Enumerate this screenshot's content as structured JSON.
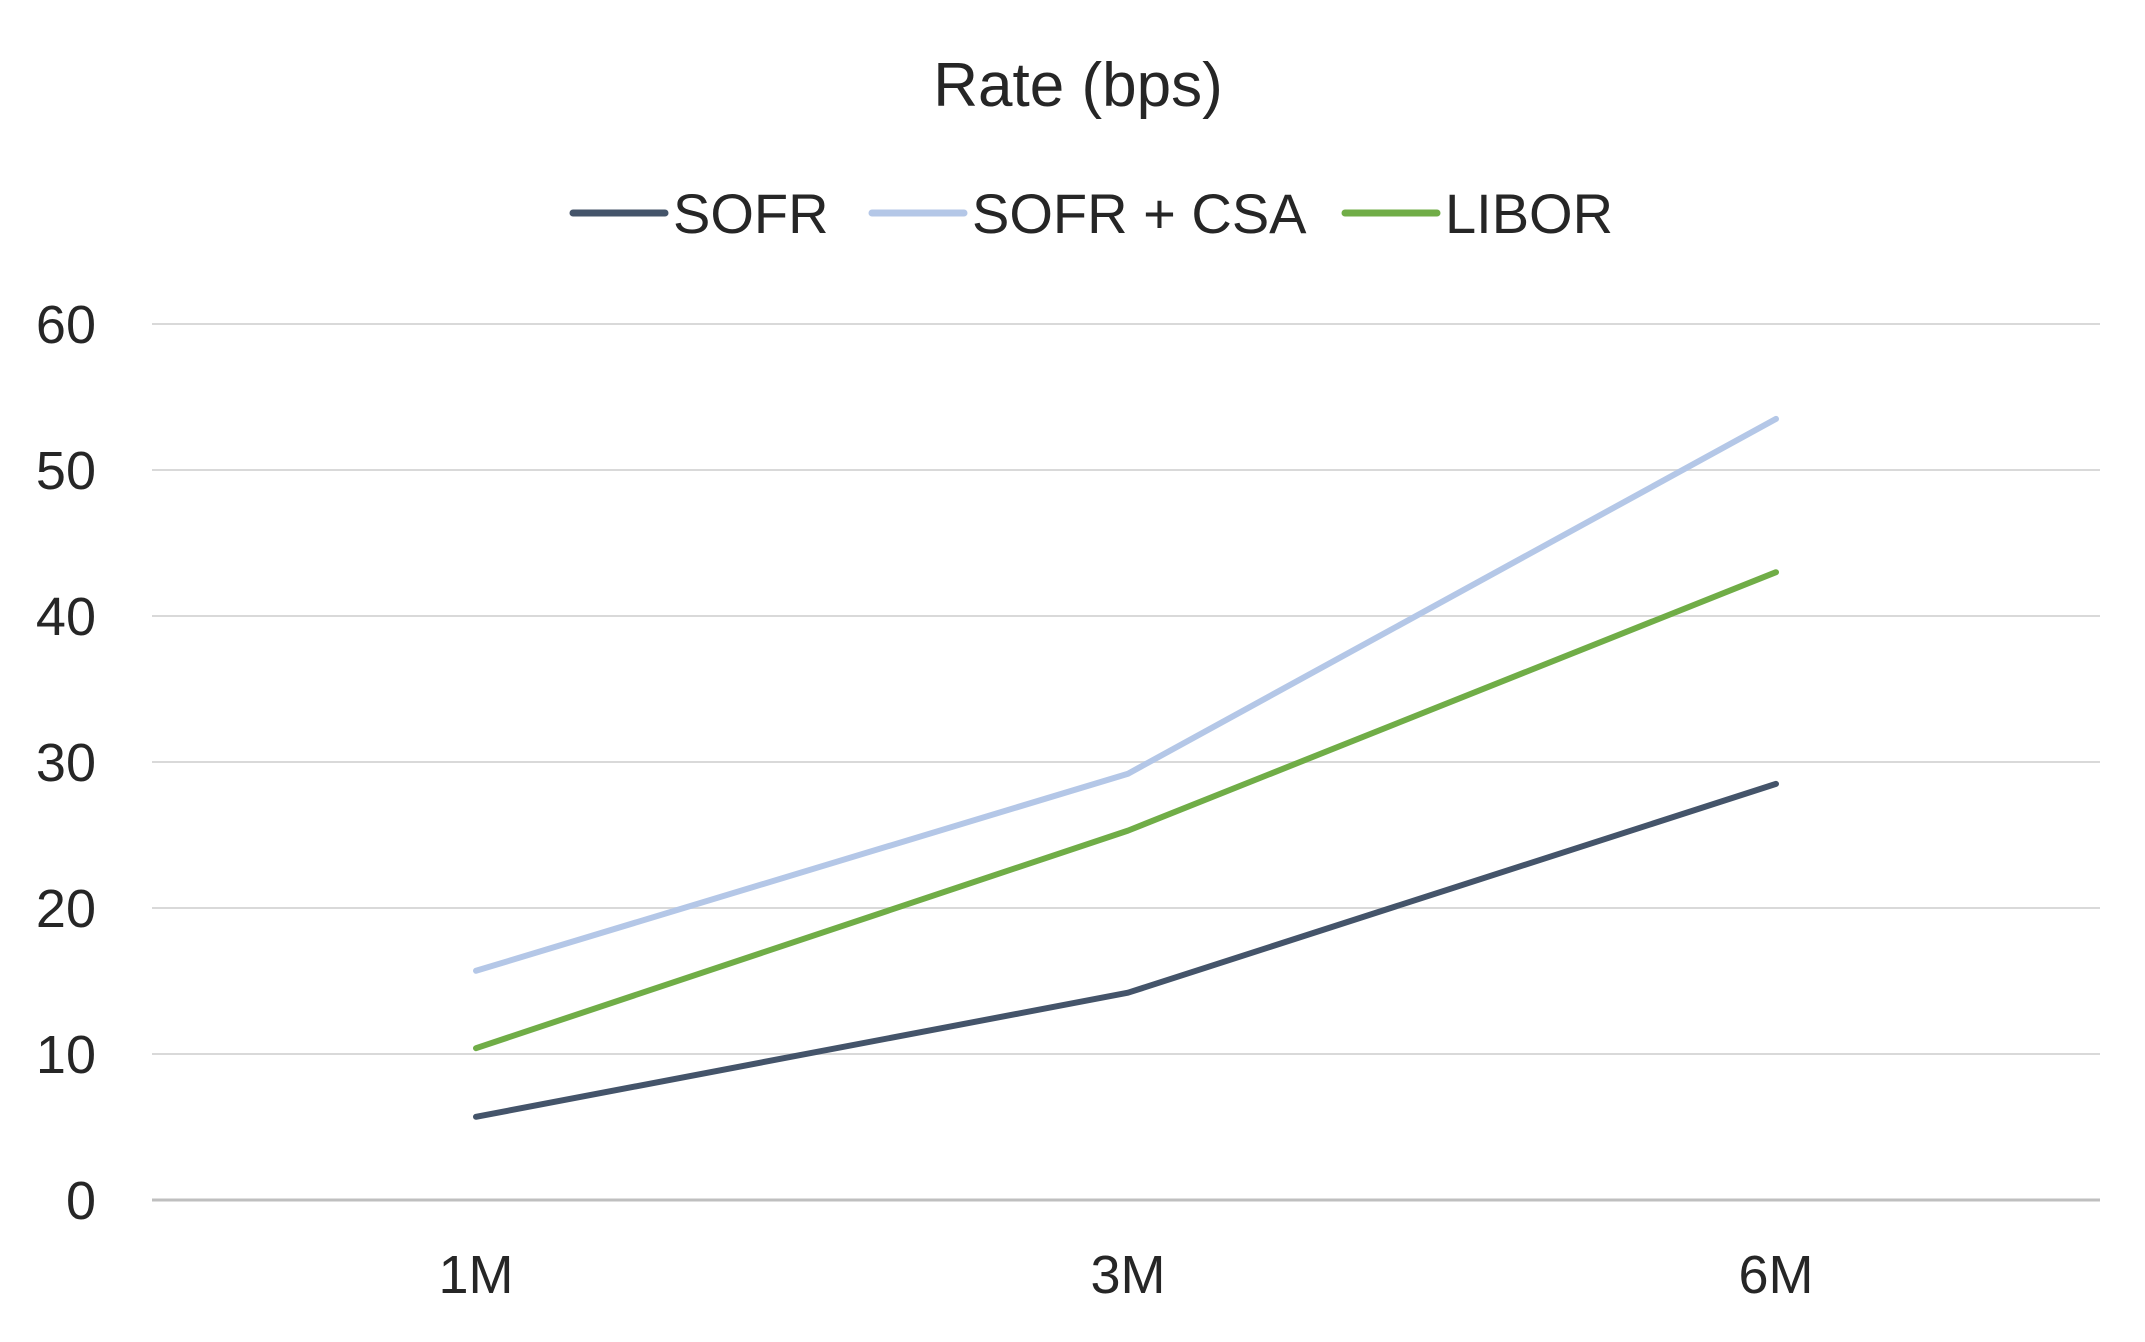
{
  "chart_data": {
    "type": "line",
    "title": "Rate (bps)",
    "xlabel": "",
    "ylabel": "",
    "categories": [
      "1M",
      "3M",
      "6M"
    ],
    "ylim": [
      0,
      60
    ],
    "yticks": [
      0,
      10,
      20,
      30,
      40,
      50,
      60
    ],
    "grid": true,
    "legend_position": "top",
    "series": [
      {
        "name": "SOFR",
        "color": "#44546a",
        "values": [
          5.7,
          14.2,
          28.5
        ]
      },
      {
        "name": "SOFR + CSA",
        "color": "#b4c7e7",
        "values": [
          15.7,
          29.2,
          53.5
        ]
      },
      {
        "name": "LIBOR",
        "color": "#70ad47",
        "values": [
          10.4,
          25.3,
          43.0
        ]
      }
    ]
  }
}
